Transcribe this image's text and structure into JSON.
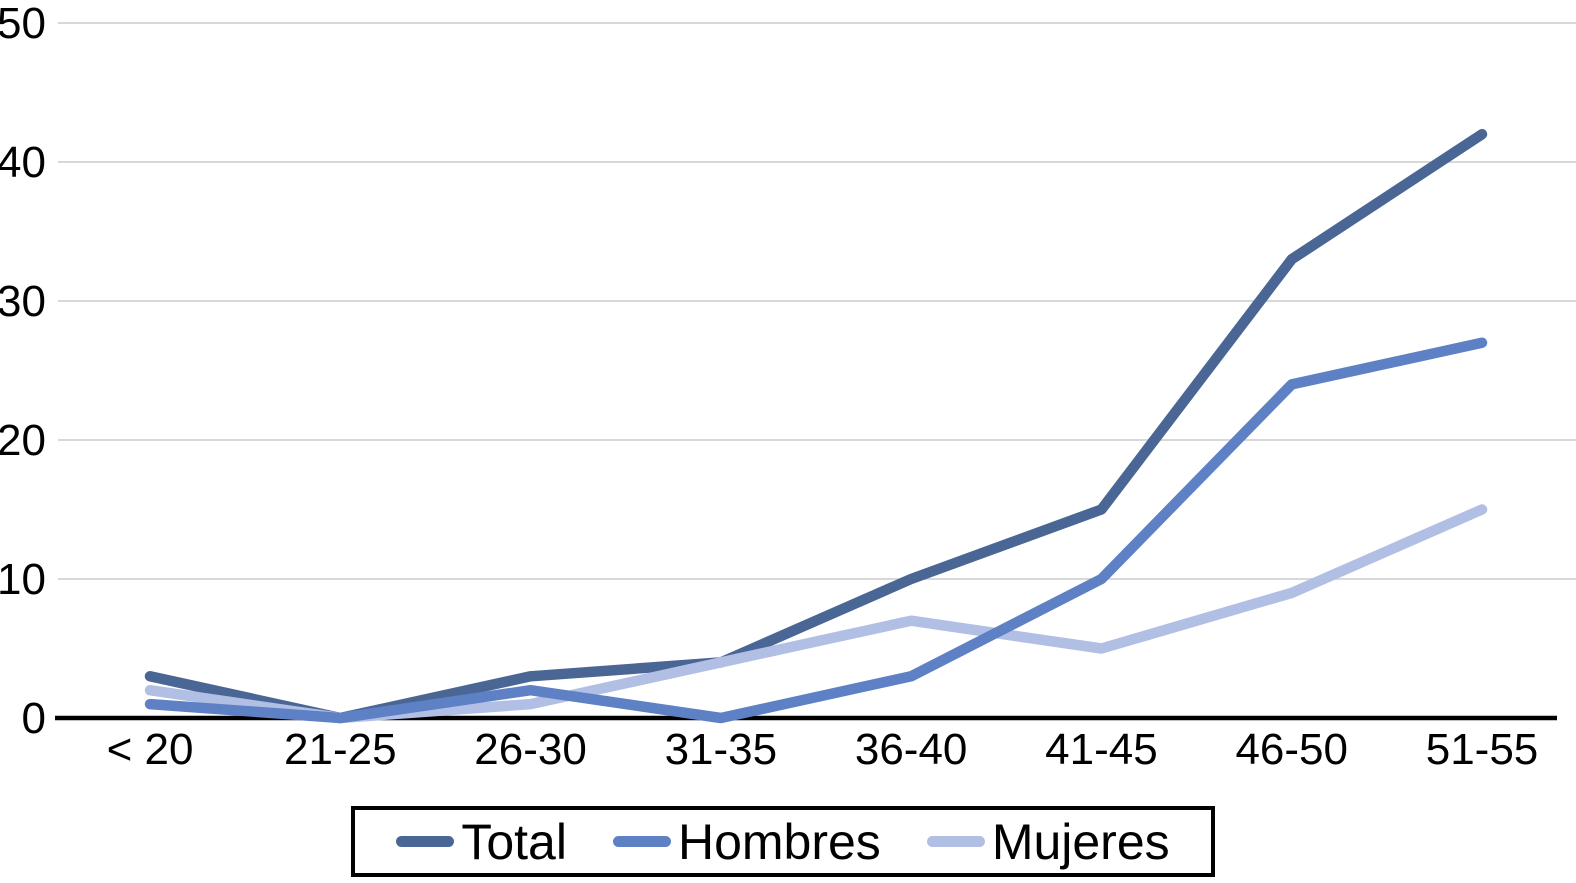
{
  "chart_data": {
    "type": "line",
    "title": "",
    "xlabel": "",
    "ylabel": "",
    "categories": [
      "< 20",
      "21-25",
      "26-30",
      "31-35",
      "36-40",
      "41-45",
      "46-50",
      "51-55"
    ],
    "series": [
      {
        "name": "Total",
        "values": [
          3,
          0,
          3,
          4,
          10,
          15,
          33,
          42
        ],
        "color": "#4a6695"
      },
      {
        "name": "Hombres",
        "values": [
          1,
          0,
          2,
          0,
          3,
          10,
          24,
          27
        ],
        "color": "#5e80c5"
      },
      {
        "name": "Mujeres",
        "values": [
          2,
          0,
          1,
          4,
          7,
          5,
          9,
          15
        ],
        "color": "#b1bfe5"
      }
    ],
    "ylim": [
      0,
      50
    ],
    "yticks": [
      0,
      10,
      20,
      30,
      40,
      50
    ],
    "grid": true,
    "legend_position": "bottom"
  },
  "colors": {
    "background": "#ffffff",
    "gridline": "#d8d8d8",
    "axis": "#000000",
    "text": "#000000",
    "legend_border": "#000000"
  }
}
